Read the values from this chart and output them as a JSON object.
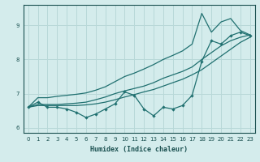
{
  "xlabel": "Humidex (Indice chaleur)",
  "ylabel": "",
  "xlim": [
    -0.5,
    23.5
  ],
  "ylim": [
    5.85,
    9.6
  ],
  "yticks": [
    6,
    7,
    8,
    9
  ],
  "xticks": [
    0,
    1,
    2,
    3,
    4,
    5,
    6,
    7,
    8,
    9,
    10,
    11,
    12,
    13,
    14,
    15,
    16,
    17,
    18,
    19,
    20,
    21,
    22,
    23
  ],
  "bg_color": "#d4ecec",
  "grid_color": "#b8d8d8",
  "line_color": "#207070",
  "x_data": [
    0,
    1,
    2,
    3,
    4,
    5,
    6,
    7,
    8,
    9,
    10,
    11,
    12,
    13,
    14,
    15,
    16,
    17,
    18,
    19,
    20,
    21,
    22,
    23
  ],
  "y_main": [
    6.6,
    6.75,
    6.6,
    6.6,
    6.55,
    6.45,
    6.3,
    6.4,
    6.55,
    6.7,
    7.05,
    6.95,
    6.55,
    6.35,
    6.6,
    6.55,
    6.65,
    6.95,
    7.95,
    8.55,
    8.45,
    8.7,
    8.8,
    8.7
  ],
  "y_line1": [
    6.6,
    6.65,
    6.65,
    6.65,
    6.65,
    6.65,
    6.67,
    6.7,
    6.75,
    6.82,
    6.9,
    6.97,
    7.05,
    7.12,
    7.22,
    7.32,
    7.42,
    7.55,
    7.7,
    7.9,
    8.1,
    8.3,
    8.5,
    8.65
  ],
  "y_line2": [
    6.6,
    6.68,
    6.68,
    6.68,
    6.7,
    6.72,
    6.75,
    6.82,
    6.9,
    7.0,
    7.08,
    7.15,
    7.22,
    7.32,
    7.45,
    7.55,
    7.65,
    7.78,
    8.0,
    8.2,
    8.4,
    8.55,
    8.65,
    8.72
  ],
  "y_line3": [
    6.6,
    6.88,
    6.88,
    6.92,
    6.95,
    6.98,
    7.02,
    7.1,
    7.2,
    7.35,
    7.5,
    7.6,
    7.72,
    7.85,
    8.0,
    8.12,
    8.25,
    8.45,
    9.35,
    8.8,
    9.1,
    9.2,
    8.85,
    8.72
  ]
}
